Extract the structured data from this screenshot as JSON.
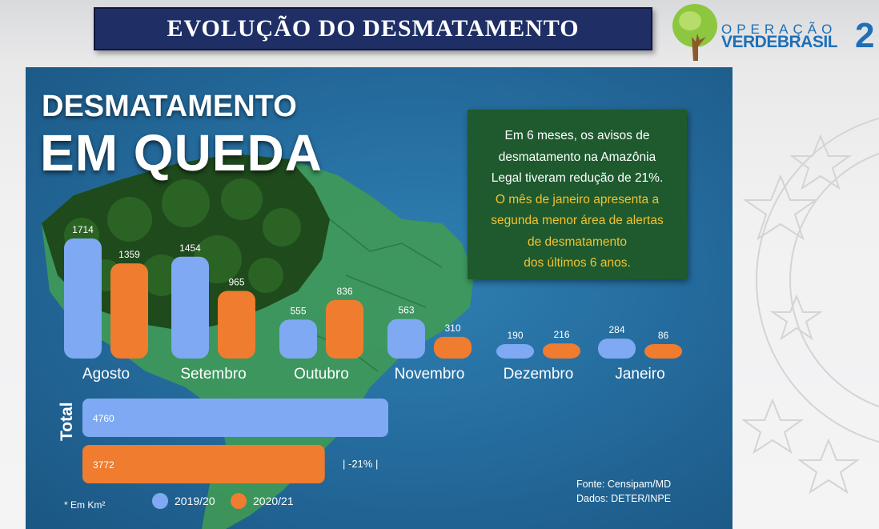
{
  "header": {
    "title": "EVOLUÇÃO DO DESMATAMENTO",
    "title_bg": "#1f2f66"
  },
  "logo": {
    "line1": "OPERAÇÃO",
    "line2": "VERDEBRASIL",
    "number": "2",
    "icon": "tree-icon",
    "color": "#1e6fb6"
  },
  "panel": {
    "title_line1": "DESMATAMENTO",
    "title_line2": "EM QUEDA",
    "info_lines_white": [
      "Em 6 meses, os avisos de",
      "desmatamento na Amazônia",
      "Legal tiveram redução de 21%."
    ],
    "info_lines_yellow": [
      "O mês de janeiro apresenta a",
      "segunda menor área de alertas",
      "de desmatamento",
      "dos últimos 6 anos."
    ],
    "total_label": "Total",
    "change_label": "-21%",
    "unit_note": "* Em Km²",
    "source_line1": "Fonte: Censipam/MD",
    "source_line2": "Dados: DETER/INPE"
  },
  "chart_data": [
    {
      "type": "bar",
      "categories": [
        "Agosto",
        "Setembro",
        "Outubro",
        "Novembro",
        "Dezembro",
        "Janeiro"
      ],
      "series": [
        {
          "name": "2019/20",
          "color": "#7fa9f2",
          "values": [
            1714,
            1454,
            555,
            563,
            190,
            284
          ]
        },
        {
          "name": "2020/21",
          "color": "#ef7c2f",
          "values": [
            1359,
            965,
            836,
            310,
            216,
            86
          ]
        }
      ],
      "ylim": [
        0,
        1714
      ]
    },
    {
      "type": "bar",
      "orientation": "horizontal",
      "categories": [
        "Total"
      ],
      "series": [
        {
          "name": "2019/20",
          "color": "#7fa9f2",
          "values": [
            4760
          ]
        },
        {
          "name": "2020/21",
          "color": "#ef7c2f",
          "values": [
            3772
          ]
        }
      ],
      "xlim": [
        0,
        4760
      ]
    }
  ]
}
